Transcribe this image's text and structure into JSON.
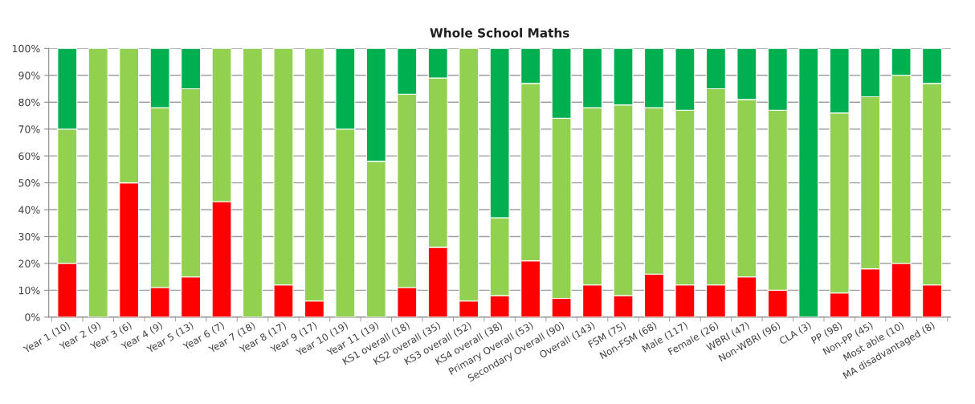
{
  "chart_data": {
    "type": "bar",
    "title": "Whole School Maths",
    "stacked": true,
    "categories": [
      "Year 1 (10)",
      "Year 2 (9)",
      "Year 3 (6)",
      "Year 4 (9)",
      "Year 5 (13)",
      "Year 6 (7)",
      "Year 7 (18)",
      "Year 8 (17)",
      "Year 9 (17)",
      "Year 10 (19)",
      "Year 11 (19)",
      "KS1 overall (18)",
      "KS2 overall (35)",
      "KS3 overall (52)",
      "KS4 overall (38)",
      "Primary Overall (53)",
      "Secondary Overall (90)",
      "Overall (143)",
      "FSM (75)",
      "Non-FSM (68)",
      "Male (117)",
      "Female (26)",
      "WBRI (47)",
      "Non-WBRI (96)",
      "CLA (3)",
      "PP (98)",
      "Non-PP (45)",
      "Most able (10)",
      "MA disadvantaged (8)"
    ],
    "series": [
      {
        "color": "#ff0000",
        "values": [
          20,
          0,
          50,
          11,
          15,
          43,
          0,
          12,
          6,
          0,
          0,
          11,
          26,
          6,
          8,
          21,
          7,
          12,
          8,
          16,
          12,
          12,
          15,
          10,
          0,
          9,
          18,
          20,
          12
        ]
      },
      {
        "color": "#92d050",
        "values": [
          50,
          100,
          50,
          67,
          70,
          57,
          100,
          88,
          94,
          70,
          58,
          72,
          63,
          94,
          29,
          66,
          67,
          66,
          71,
          62,
          65,
          73,
          66,
          67,
          0,
          67,
          64,
          70,
          75
        ]
      },
      {
        "color": "#00b050",
        "values": [
          30,
          0,
          0,
          22,
          15,
          0,
          0,
          0,
          0,
          30,
          42,
          17,
          11,
          0,
          63,
          13,
          26,
          22,
          21,
          22,
          23,
          15,
          19,
          23,
          100,
          24,
          18,
          10,
          13
        ]
      }
    ],
    "ylim": [
      0,
      100
    ],
    "yticks": [
      {
        "value": 0,
        "label": "0%"
      },
      {
        "value": 10,
        "label": "10%"
      },
      {
        "value": 20,
        "label": "20%"
      },
      {
        "value": 30,
        "label": "30%"
      },
      {
        "value": 40,
        "label": "40%"
      },
      {
        "value": 50,
        "label": "50%"
      },
      {
        "value": 60,
        "label": "60%"
      },
      {
        "value": 70,
        "label": "70%"
      },
      {
        "value": 80,
        "label": "80%"
      },
      {
        "value": 90,
        "label": "90%"
      },
      {
        "value": 100,
        "label": "100%"
      }
    ],
    "grid": "y"
  }
}
